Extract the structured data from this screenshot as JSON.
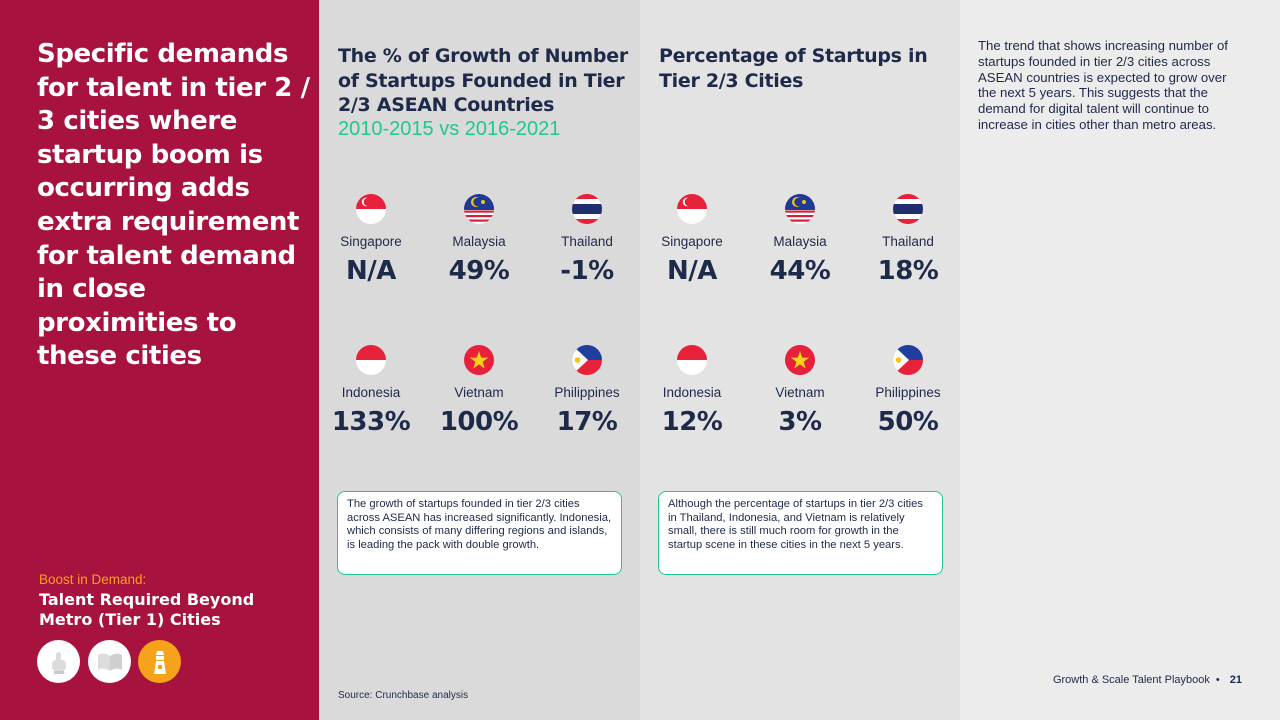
{
  "headline": "Specific demands for talent in tier 2 / 3 cities where startup boom is occurring adds extra requirement for talent demand in close proximities to these cities",
  "boost": {
    "label": "Boost in Demand:",
    "title": "Talent Required Beyond Metro (Tier 1) Cities"
  },
  "icons": [
    "hand-pointer-icon",
    "book-icon",
    "lighthouse-icon"
  ],
  "growth": {
    "title": "The % of Growth of Number of Startups Founded in Tier 2/3 ASEAN Countries",
    "subtitle": "2010-2015 vs 2016-2021",
    "items": [
      {
        "country": "Singapore",
        "value": "N/A",
        "flag": "singapore-flag-icon"
      },
      {
        "country": "Malaysia",
        "value": "49%",
        "flag": "malaysia-flag-icon"
      },
      {
        "country": "Thailand",
        "value": "-1%",
        "flag": "thailand-flag-icon"
      },
      {
        "country": "Indonesia",
        "value": "133%",
        "flag": "indonesia-flag-icon"
      },
      {
        "country": "Vietnam",
        "value": "100%",
        "flag": "vietnam-flag-icon"
      },
      {
        "country": "Philippines",
        "value": "17%",
        "flag": "philippines-flag-icon"
      }
    ],
    "note": "The growth of startups founded in tier 2/3 cities across ASEAN has increased significantly. Indonesia, which consists of many differing regions and islands, is leading the pack with double growth."
  },
  "percentage": {
    "title": "Percentage of Startups in Tier 2/3 Cities",
    "items": [
      {
        "country": "Singapore",
        "value": "N/A",
        "flag": "singapore-flag-icon"
      },
      {
        "country": "Malaysia",
        "value": "44%",
        "flag": "malaysia-flag-icon"
      },
      {
        "country": "Thailand",
        "value": "18%",
        "flag": "thailand-flag-icon"
      },
      {
        "country": "Indonesia",
        "value": "12%",
        "flag": "indonesia-flag-icon"
      },
      {
        "country": "Vietnam",
        "value": "3%",
        "flag": "vietnam-flag-icon"
      },
      {
        "country": "Philippines",
        "value": "50%",
        "flag": "philippines-flag-icon"
      }
    ],
    "note": "Although the percentage of startups in tier 2/3 cities in Thailand, Indonesia, and Vietnam is relatively small, there is still much room for growth in the startup scene in these cities in the next 5 years."
  },
  "source": "Source: Crunchbase analysis",
  "trend_text": "The trend that shows increasing number of startups founded in tier 2/3 cities across ASEAN countries is expected to grow over the next 5 years. This suggests that the demand for digital talent will continue to increase in cities other than metro areas.",
  "footer": {
    "doc_title": "Growth & Scale Talent Playbook",
    "separator": "•",
    "page": "21"
  },
  "colors": {
    "brand_red": "#a8123e",
    "accent_green": "#1ec98a",
    "accent_orange": "#f7a21b",
    "navy": "#1e2a4a"
  }
}
